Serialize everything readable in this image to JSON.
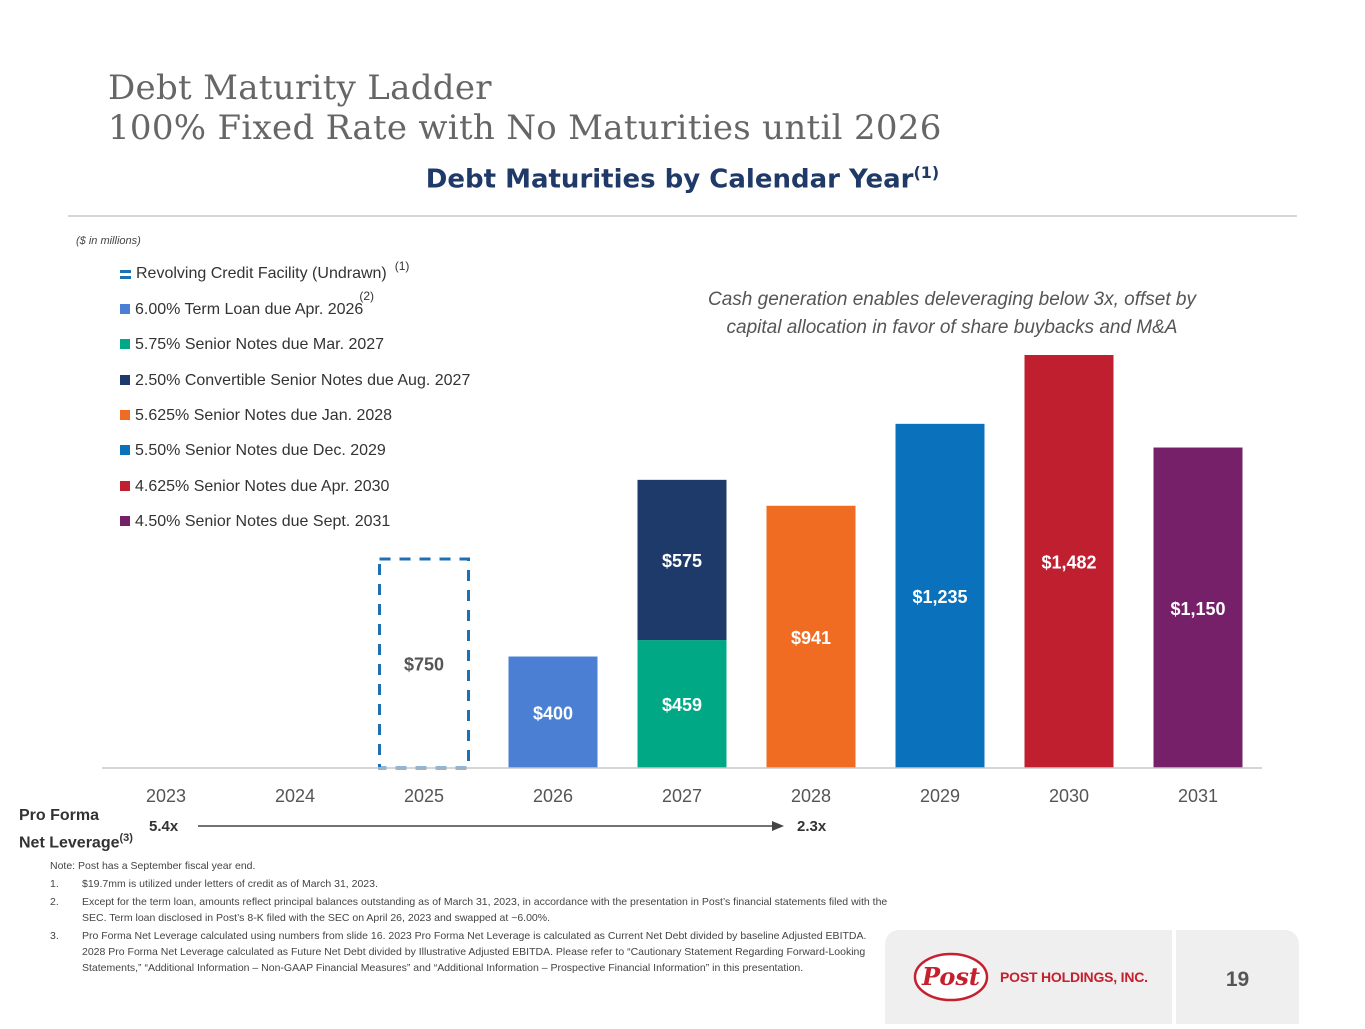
{
  "header": {
    "title_line1": "Debt Maturity Ladder",
    "title_line2": "100% Fixed Rate with No Maturities until 2026",
    "chart_title": "Debt Maturities by Calendar Year",
    "chart_title_footnote": "(1)",
    "units": "($ in millions)"
  },
  "legend": [
    {
      "label": "Revolving Credit Facility (Undrawn)",
      "footnote": "(1)",
      "color": "#1f6fb5",
      "style": "dashed"
    },
    {
      "label": "6.00% Term Loan due Apr. 2026",
      "footnote": "(2)",
      "color": "#4a7fd4",
      "style": "solid"
    },
    {
      "label": "5.75% Senior Notes due Mar. 2027",
      "footnote": "",
      "color": "#00a885",
      "style": "solid"
    },
    {
      "label": "2.50% Convertible Senior Notes due Aug. 2027",
      "footnote": "",
      "color": "#1d3a6b",
      "style": "solid"
    },
    {
      "label": "5.625% Senior Notes due Jan. 2028",
      "footnote": "",
      "color": "#f06c22",
      "style": "solid"
    },
    {
      "label": "5.50% Senior Notes due Dec. 2029",
      "footnote": "",
      "color": "#0a72bd",
      "style": "solid"
    },
    {
      "label": "4.625% Senior Notes due Apr. 2030",
      "footnote": "",
      "color": "#c01f30",
      "style": "solid"
    },
    {
      "label": "4.50% Senior Notes due Sept. 2031",
      "footnote": "",
      "color": "#76206a",
      "style": "solid"
    }
  ],
  "callout": {
    "line1": "Cash generation enables deleveraging below 3x, offset by",
    "line2": "capital allocation in favor of share buybacks and M&A"
  },
  "chart_data": {
    "type": "bar",
    "stacked": true,
    "title": "Debt Maturities by Calendar Year",
    "ylabel": "$ in millions",
    "xlabel": "",
    "categories": [
      "2023",
      "2024",
      "2025",
      "2026",
      "2027",
      "2028",
      "2029",
      "2030",
      "2031"
    ],
    "ylim": [
      0,
      1482
    ],
    "segments": [
      {
        "category": "2025",
        "name": "Revolving Credit Facility (Undrawn)",
        "value": 750,
        "label": "$750",
        "color": "#1f6fb5",
        "style": "dashed"
      },
      {
        "category": "2026",
        "name": "6.00% Term Loan due Apr. 2026",
        "value": 400,
        "label": "$400",
        "color": "#4a7fd4",
        "style": "solid"
      },
      {
        "category": "2027",
        "name": "5.75% Senior Notes due Mar. 2027",
        "value": 459,
        "label": "$459",
        "color": "#00a885",
        "style": "solid"
      },
      {
        "category": "2027",
        "name": "2.50% Convertible Senior Notes due Aug. 2027",
        "value": 575,
        "label": "$575",
        "color": "#1d3a6b",
        "style": "solid"
      },
      {
        "category": "2028",
        "name": "5.625% Senior Notes due Jan. 2028",
        "value": 941,
        "label": "$941",
        "color": "#f06c22",
        "style": "solid"
      },
      {
        "category": "2029",
        "name": "5.50% Senior Notes due Dec. 2029",
        "value": 1235,
        "label": "$1,235",
        "color": "#0a72bd",
        "style": "solid"
      },
      {
        "category": "2030",
        "name": "4.625% Senior Notes due Apr. 2030",
        "value": 1482,
        "label": "$1,482",
        "color": "#c01f30",
        "style": "solid"
      },
      {
        "category": "2031",
        "name": "4.50% Senior Notes due Sept. 2031",
        "value": 1150,
        "label": "$1,150",
        "color": "#76206a",
        "style": "solid"
      }
    ]
  },
  "leverage": {
    "label_line1": "Pro Forma",
    "label_line2": "Net Leverage",
    "label_footnote": "(3)",
    "start_value": "5.4x",
    "end_value": "2.3x"
  },
  "notes": {
    "note": "Note: Post has a September fiscal year end.",
    "items": [
      {
        "num": "1.",
        "text": "$19.7mm is utilized under letters of credit as of March 31, 2023."
      },
      {
        "num": "2.",
        "text": "Except for the term loan, amounts reflect principal balances outstanding as of March 31, 2023, in accordance with the presentation in Post’s financial statements filed with the SEC. Term loan disclosed in Post’s 8-K filed with the SEC on April 26, 2023 and swapped at ~6.00%."
      },
      {
        "num": "3.",
        "text": "Pro Forma Net Leverage calculated using numbers from slide 16. 2023 Pro Forma Net Leverage is calculated as Current Net Debt divided by baseline Adjusted EBITDA. 2028 Pro Forma Net Leverage calculated as Future Net Debt divided by Illustrative Adjusted EBITDA. Please refer to “Cautionary Statement Regarding Forward-Looking Statements,” “Additional Information – Non-GAAP Financial Measures” and “Additional Information – Prospective Financial Information” in this presentation."
      }
    ]
  },
  "footer": {
    "logo_text": "Post",
    "company": "POST HOLDINGS, INC.",
    "page_number": "19",
    "brand_color": "#c4202e"
  }
}
